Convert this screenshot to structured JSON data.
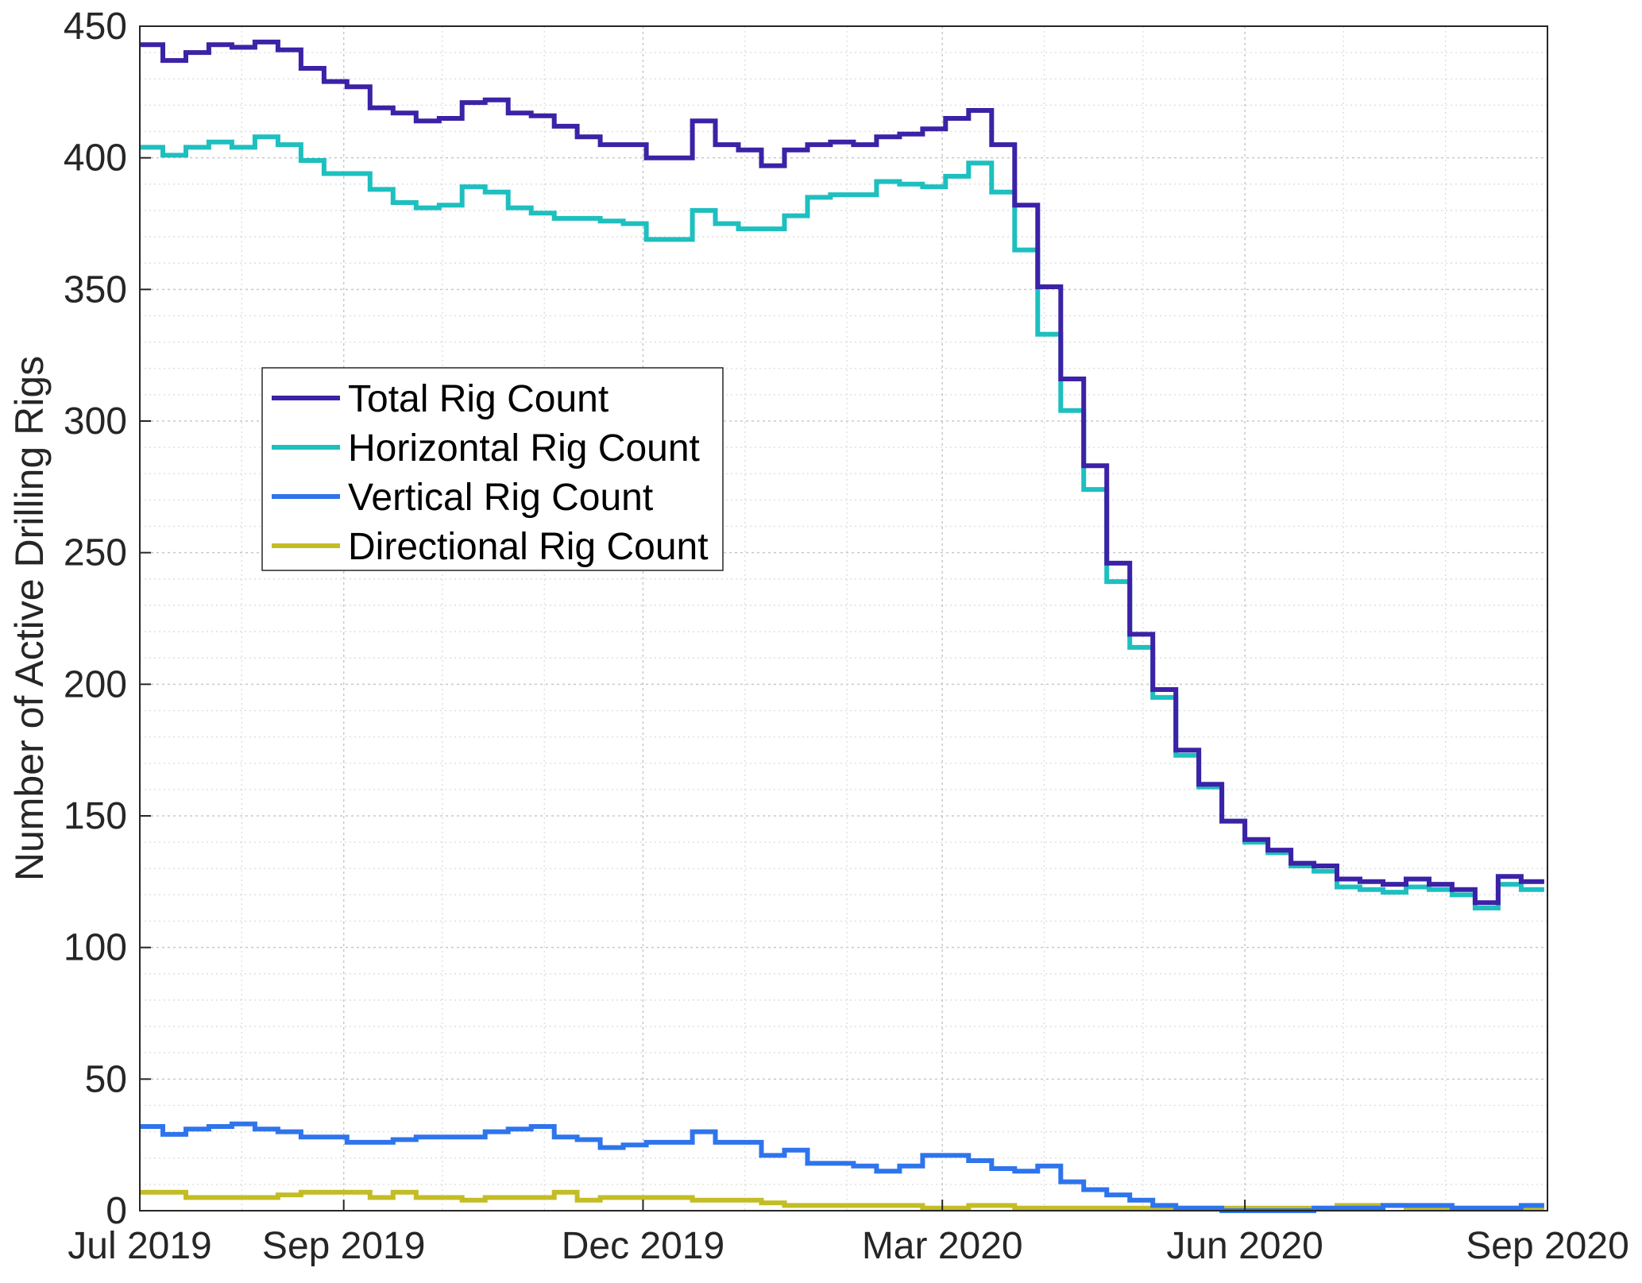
{
  "chart_data": {
    "type": "line",
    "step": true,
    "title": "",
    "xlabel": "",
    "ylabel": "Number of Active Drilling Rigs",
    "xlim": [
      "2019-07-01",
      "2020-09-01"
    ],
    "ylim": [
      0,
      450
    ],
    "xticks": [
      {
        "label": "Jul 2019",
        "date": "2019-07-01"
      },
      {
        "label": "Sep 2019",
        "date": "2019-09-01"
      },
      {
        "label": "Dec 2019",
        "date": "2019-12-01"
      },
      {
        "label": "Mar 2020",
        "date": "2020-03-01"
      },
      {
        "label": "Jun 2020",
        "date": "2020-06-01"
      },
      {
        "label": "Sep 2020",
        "date": "2020-09-01"
      }
    ],
    "yticks": [
      0,
      50,
      100,
      150,
      200,
      250,
      300,
      350,
      400,
      450
    ],
    "grid": true,
    "legend_position": "upper-left",
    "x": [
      "2019-07-01",
      "2019-07-08",
      "2019-07-15",
      "2019-07-22",
      "2019-07-29",
      "2019-08-05",
      "2019-08-12",
      "2019-08-19",
      "2019-08-26",
      "2019-09-02",
      "2019-09-09",
      "2019-09-16",
      "2019-09-23",
      "2019-09-30",
      "2019-10-07",
      "2019-10-14",
      "2019-10-21",
      "2019-10-28",
      "2019-11-04",
      "2019-11-11",
      "2019-11-18",
      "2019-11-25",
      "2019-12-02",
      "2019-12-09",
      "2019-12-16",
      "2019-12-23",
      "2019-12-30",
      "2020-01-06",
      "2020-01-13",
      "2020-01-20",
      "2020-01-27",
      "2020-02-03",
      "2020-02-10",
      "2020-02-17",
      "2020-02-24",
      "2020-03-02",
      "2020-03-09",
      "2020-03-16",
      "2020-03-23",
      "2020-03-30",
      "2020-04-06",
      "2020-04-13",
      "2020-04-20",
      "2020-04-27",
      "2020-05-04",
      "2020-05-11",
      "2020-05-18",
      "2020-05-25",
      "2020-06-01",
      "2020-06-08",
      "2020-06-15",
      "2020-06-22",
      "2020-06-29",
      "2020-07-06",
      "2020-07-13",
      "2020-07-20",
      "2020-07-27",
      "2020-08-03",
      "2020-08-10",
      "2020-08-17",
      "2020-08-24"
    ],
    "series": [
      {
        "name": "Total Rig Count",
        "color": "#3b22a6",
        "values": [
          443,
          437,
          440,
          443,
          442,
          444,
          441,
          434,
          429,
          427,
          419,
          417,
          414,
          415,
          421,
          422,
          417,
          416,
          412,
          408,
          405,
          405,
          400,
          400,
          414,
          405,
          403,
          397,
          403,
          405,
          406,
          405,
          408,
          409,
          411,
          415,
          418,
          405,
          382,
          351,
          316,
          283,
          246,
          219,
          198,
          175,
          162,
          148,
          141,
          137,
          132,
          131,
          126,
          125,
          124,
          126,
          124,
          122,
          117,
          127,
          125
        ]
      },
      {
        "name": "Horizontal Rig Count",
        "color": "#1ebfbf",
        "values": [
          404,
          401,
          404,
          406,
          404,
          408,
          405,
          399,
          394,
          394,
          388,
          383,
          381,
          382,
          389,
          387,
          381,
          379,
          377,
          377,
          376,
          375,
          369,
          369,
          380,
          375,
          373,
          373,
          378,
          385,
          386,
          386,
          391,
          390,
          389,
          393,
          398,
          387,
          365,
          333,
          304,
          274,
          239,
          214,
          195,
          173,
          161,
          148,
          140,
          136,
          131,
          129,
          123,
          122,
          121,
          123,
          122,
          120,
          115,
          124,
          122
        ]
      },
      {
        "name": "Vertical Rig Count",
        "color": "#2f74ec",
        "values": [
          32,
          29,
          31,
          32,
          33,
          31,
          30,
          28,
          28,
          26,
          26,
          27,
          28,
          28,
          28,
          30,
          31,
          32,
          28,
          27,
          24,
          25,
          26,
          26,
          30,
          26,
          26,
          21,
          23,
          18,
          18,
          17,
          15,
          17,
          21,
          21,
          19,
          16,
          15,
          17,
          11,
          8,
          6,
          4,
          2,
          1,
          1,
          0,
          0,
          0,
          0,
          1,
          1,
          1,
          2,
          2,
          2,
          1,
          1,
          1,
          2
        ]
      },
      {
        "name": "Directional Rig Count",
        "color": "#c3bd25",
        "values": [
          7,
          7,
          5,
          5,
          5,
          5,
          6,
          7,
          7,
          7,
          5,
          7,
          5,
          5,
          4,
          5,
          5,
          5,
          7,
          4,
          5,
          5,
          5,
          5,
          4,
          4,
          4,
          3,
          2,
          2,
          2,
          2,
          2,
          2,
          1,
          1,
          2,
          2,
          1,
          1,
          1,
          1,
          1,
          1,
          1,
          1,
          1,
          1,
          1,
          1,
          1,
          1,
          2,
          2,
          2,
          1,
          1,
          1,
          1,
          1,
          1
        ]
      }
    ]
  }
}
